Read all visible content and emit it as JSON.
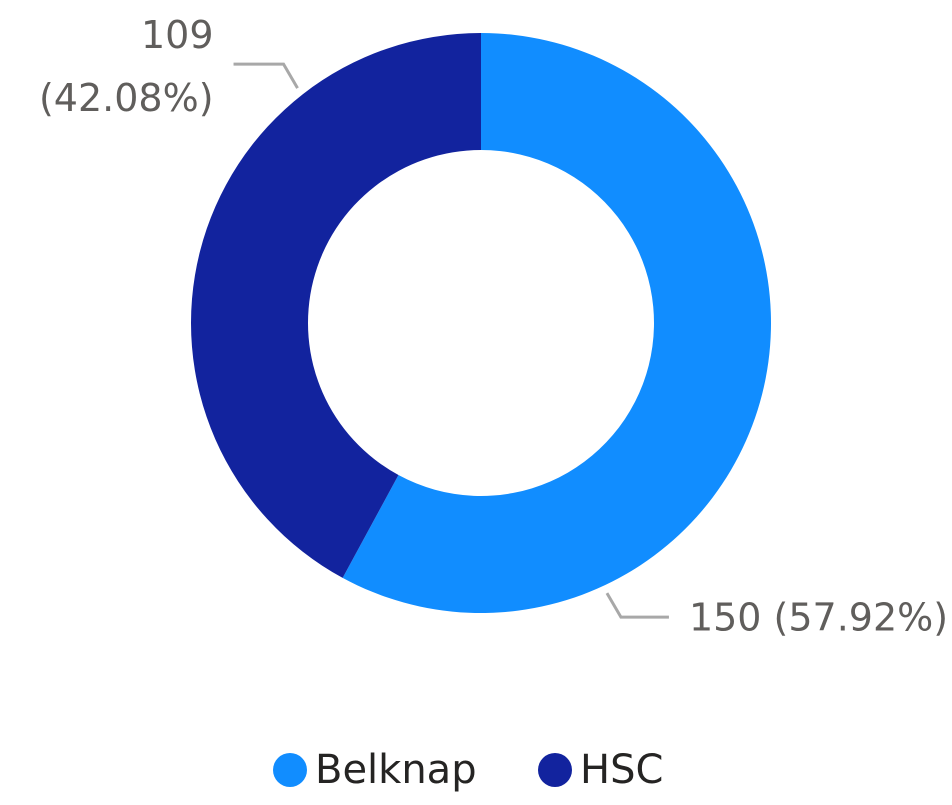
{
  "chart_data": {
    "type": "donut",
    "categories": [
      "Belknap",
      "HSC"
    ],
    "values": [
      150,
      109
    ],
    "value_labels": [
      "150 (57.92%)",
      "109 (42.08%)"
    ],
    "colors": [
      "#118dff",
      "#12239e"
    ],
    "legend": "bottom"
  }
}
